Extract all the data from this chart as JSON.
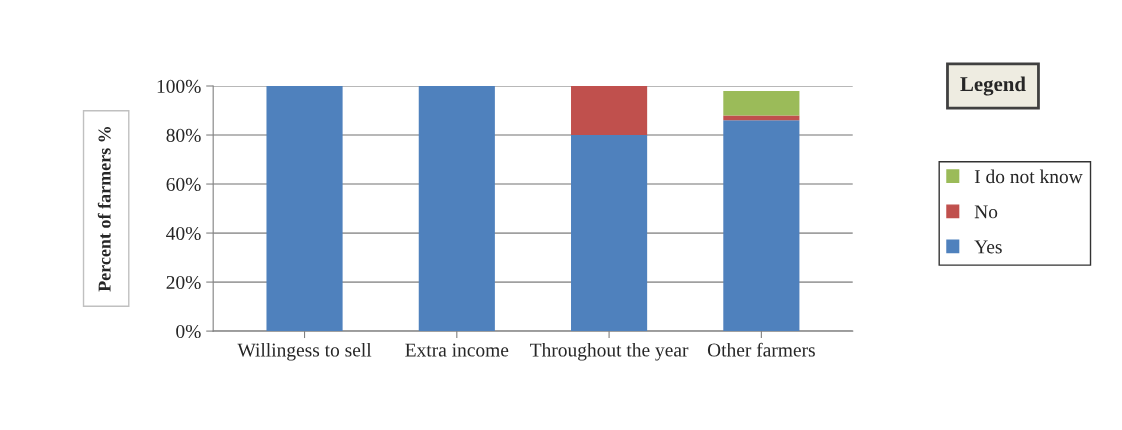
{
  "chart_data": {
    "type": "bar",
    "stacked": true,
    "ylabel": "Percent of farmers %",
    "legend_title": "Legend",
    "legend": "right",
    "categories": [
      "Willingess to sell",
      "Extra income",
      "Throughout the year",
      "Other farmers"
    ],
    "series": [
      {
        "name": "Yes",
        "color": "#4f81bd",
        "values": [
          100,
          100,
          80,
          86
        ]
      },
      {
        "name": "No",
        "color": "#c0504d",
        "values": [
          0,
          0,
          20,
          2
        ]
      },
      {
        "name": "I do not know",
        "color": "#9bbb59",
        "values": [
          0,
          0,
          0,
          10
        ]
      }
    ],
    "ylim": [
      0,
      100
    ],
    "yticks": [
      {
        "value": 0,
        "label": "0%"
      },
      {
        "value": 20,
        "label": "20%"
      },
      {
        "value": 40,
        "label": "40%"
      },
      {
        "value": 60,
        "label": "60%"
      },
      {
        "value": 80,
        "label": "80%"
      },
      {
        "value": 100,
        "label": "100%"
      }
    ],
    "grid": "y"
  }
}
